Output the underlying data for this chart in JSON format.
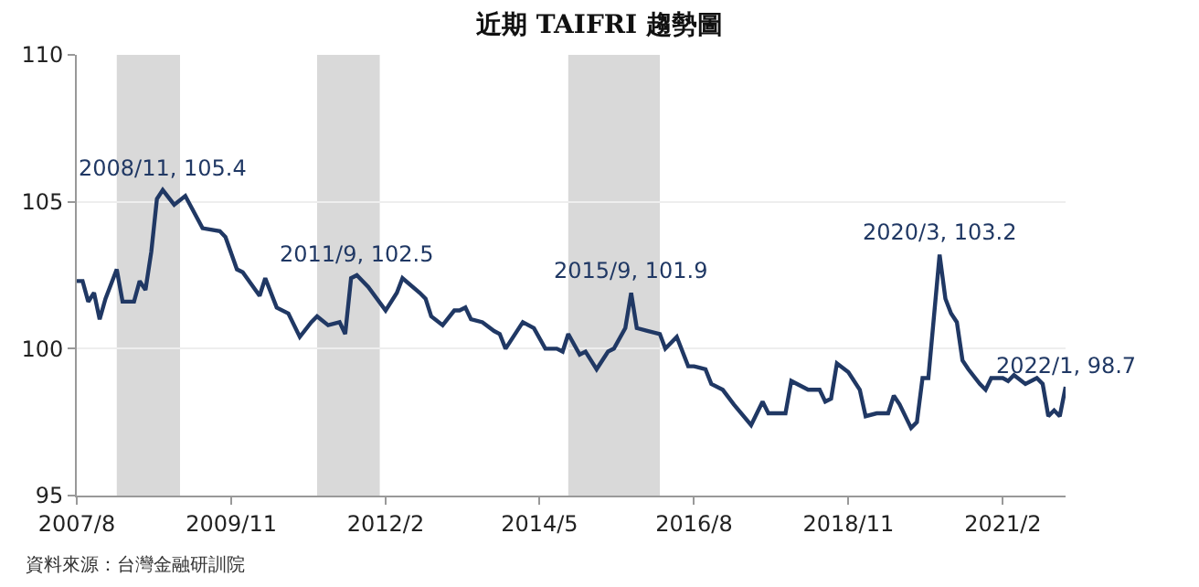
{
  "chart_data": {
    "type": "line",
    "title": "近期 TAIFRI 趨勢圖",
    "x": [
      "2007-08",
      "2007-09",
      "2007-10",
      "2007-11",
      "2007-12",
      "2008-01",
      "2008-03",
      "2008-04",
      "2008-06",
      "2008-07",
      "2008-08",
      "2008-09",
      "2008-10",
      "2008-11",
      "2009-01",
      "2009-03",
      "2009-06",
      "2009-09",
      "2009-10",
      "2009-12",
      "2010-01",
      "2010-04",
      "2010-05",
      "2010-07",
      "2010-09",
      "2010-11",
      "2011-01",
      "2011-02",
      "2011-04",
      "2011-06",
      "2011-07",
      "2011-08",
      "2011-09",
      "2011-11",
      "2012-02",
      "2012-04",
      "2012-05",
      "2012-08",
      "2012-09",
      "2012-10",
      "2012-12",
      "2013-02",
      "2013-03",
      "2013-04",
      "2013-05",
      "2013-07",
      "2013-09",
      "2013-10",
      "2013-11",
      "2014-02",
      "2014-04",
      "2014-06",
      "2014-08",
      "2014-09",
      "2014-10",
      "2014-12",
      "2015-01",
      "2015-03",
      "2015-05",
      "2015-06",
      "2015-08",
      "2015-09",
      "2015-10",
      "2015-12",
      "2016-02",
      "2016-03",
      "2016-05",
      "2016-07",
      "2016-08",
      "2016-10",
      "2016-11",
      "2017-01",
      "2017-03",
      "2017-06",
      "2017-08",
      "2017-09",
      "2017-12",
      "2018-01",
      "2018-04",
      "2018-06",
      "2018-07",
      "2018-08",
      "2018-09",
      "2018-11",
      "2019-01",
      "2019-02",
      "2019-04",
      "2019-06",
      "2019-07",
      "2019-08",
      "2019-10",
      "2019-11",
      "2019-12",
      "2020-01",
      "2020-03",
      "2020-04",
      "2020-05",
      "2020-06",
      "2020-07",
      "2020-08",
      "2020-10",
      "2020-11",
      "2020-12",
      "2021-02",
      "2021-03",
      "2021-04",
      "2021-06",
      "2021-08",
      "2021-09",
      "2021-10",
      "2021-11",
      "2021-12",
      "2022-01"
    ],
    "series": [
      {
        "color": "#203864",
        "values": [
          102.3,
          102.3,
          101.6,
          101.9,
          101.0,
          101.7,
          102.7,
          101.6,
          101.6,
          102.3,
          102.0,
          103.3,
          105.1,
          105.4,
          104.9,
          105.2,
          104.1,
          104.0,
          103.8,
          102.7,
          102.6,
          101.8,
          102.4,
          101.4,
          101.2,
          100.4,
          100.9,
          101.1,
          100.8,
          100.9,
          100.5,
          102.4,
          102.5,
          102.1,
          101.3,
          101.9,
          102.4,
          101.9,
          101.7,
          101.1,
          100.8,
          101.3,
          101.3,
          101.4,
          101.0,
          100.9,
          100.6,
          100.5,
          100.0,
          100.9,
          100.7,
          100.0,
          100.0,
          99.9,
          100.5,
          99.8,
          99.9,
          99.3,
          99.9,
          100.0,
          100.7,
          101.9,
          100.7,
          100.6,
          100.5,
          100.0,
          100.4,
          99.4,
          99.4,
          99.3,
          98.8,
          98.6,
          98.1,
          97.4,
          98.2,
          97.8,
          97.8,
          98.9,
          98.6,
          98.6,
          98.2,
          98.3,
          99.5,
          99.2,
          98.6,
          97.7,
          97.8,
          97.8,
          98.4,
          98.1,
          97.3,
          97.5,
          99.0,
          99.0,
          103.2,
          101.7,
          101.2,
          100.9,
          99.6,
          99.3,
          98.8,
          98.6,
          99.0,
          99.0,
          98.9,
          99.1,
          98.8,
          99.0,
          98.8,
          97.7,
          97.9,
          97.7,
          98.7
        ]
      }
    ],
    "xlim": [
      "2007-08",
      "2022-01"
    ],
    "xticks": [
      {
        "value": "2007-08",
        "label": "2007/8"
      },
      {
        "value": "2009-11",
        "label": "2009/11"
      },
      {
        "value": "2012-02",
        "label": "2012/2"
      },
      {
        "value": "2014-05",
        "label": "2014/5"
      },
      {
        "value": "2016-08",
        "label": "2016/8"
      },
      {
        "value": "2018-11",
        "label": "2018/11"
      },
      {
        "value": "2021-02",
        "label": "2021/2"
      }
    ],
    "ylim": [
      95,
      110
    ],
    "yticks": [
      95,
      100,
      105,
      110
    ],
    "grid": "y",
    "marker": "none",
    "line_style": "solid",
    "bands": [
      {
        "axis": "x",
        "from": "2008-03",
        "to": "2009-02",
        "color": "#d9d9d9"
      },
      {
        "axis": "x",
        "from": "2011-02",
        "to": "2012-01",
        "color": "#d9d9d9"
      },
      {
        "axis": "x",
        "from": "2014-10",
        "to": "2016-02",
        "color": "#d9d9d9"
      }
    ],
    "annotations": [
      {
        "text": "2008/11, 105.4",
        "x": "2008-11",
        "y": 105.4
      },
      {
        "text": "2011/9, 102.5",
        "x": "2011-09",
        "y": 102.5
      },
      {
        "text": "2015/9, 101.9",
        "x": "2015-09",
        "y": 101.9
      },
      {
        "text": "2020/3, 103.2",
        "x": "2020-03",
        "y": 103.2
      },
      {
        "text": "2022/1, 98.7",
        "x": "2022-01",
        "y": 98.7
      },
      "資料來源：台灣金融研訓院"
    ]
  }
}
